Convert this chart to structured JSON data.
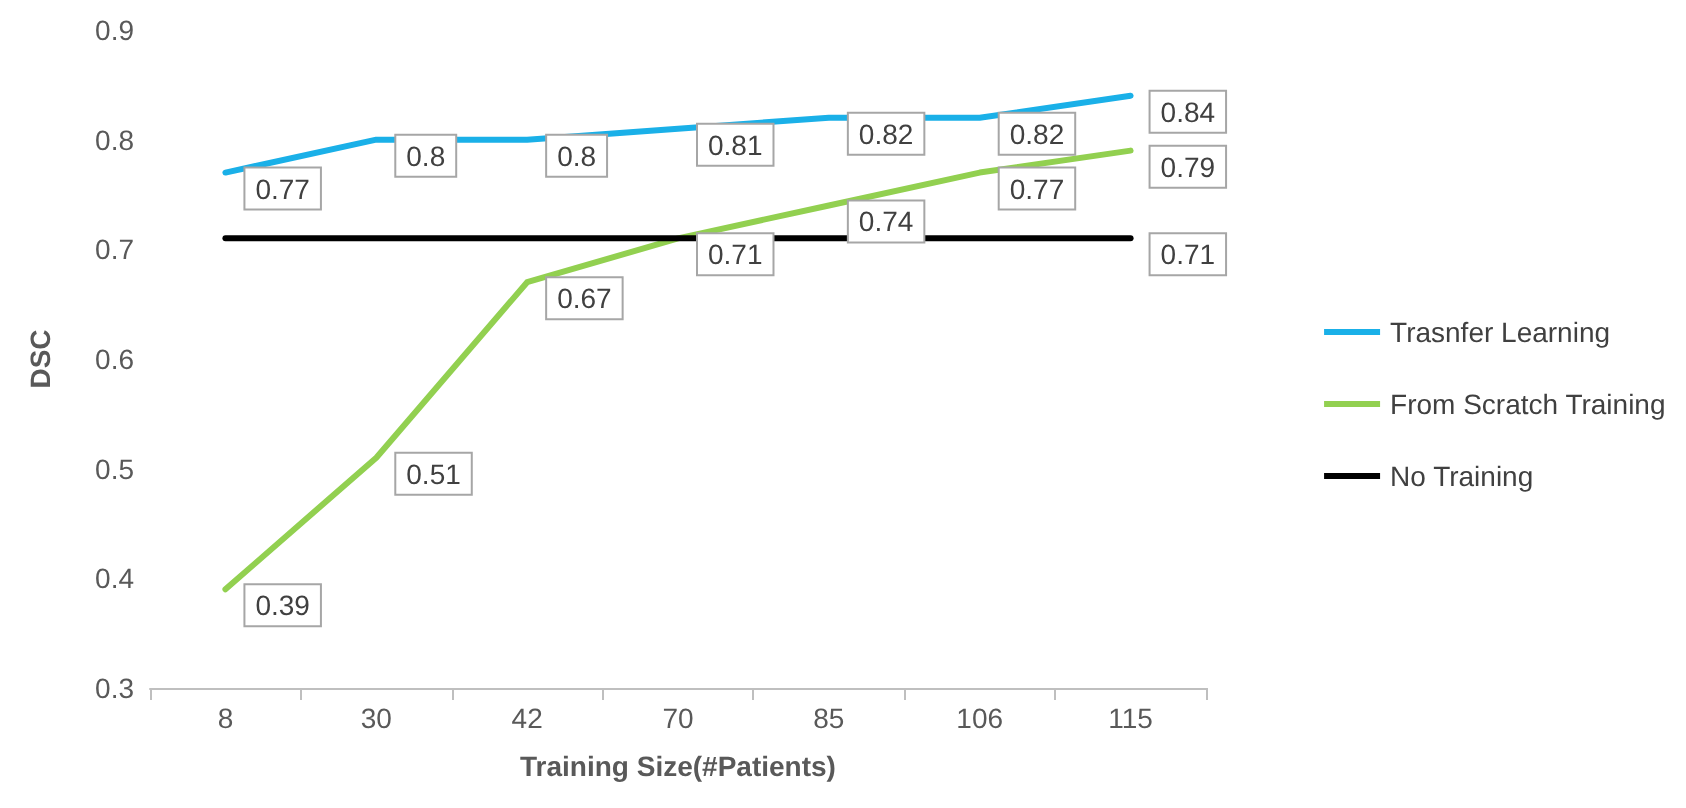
{
  "chart_data": {
    "type": "line",
    "xlabel": "Training Size(#Patients)",
    "ylabel": "DSC",
    "categories": [
      "8",
      "30",
      "42",
      "70",
      "85",
      "106",
      "115"
    ],
    "ylim": [
      0.3,
      0.9
    ],
    "yticks": [
      0.3,
      0.4,
      0.5,
      0.6,
      0.7,
      0.8,
      0.9
    ],
    "legend": "right",
    "marker": "none",
    "line_style": "solid",
    "series": [
      {
        "name": "Trasnfer Learning",
        "color": "#1ab0e8",
        "values": [
          0.77,
          0.8,
          0.8,
          0.81,
          0.82,
          0.82,
          0.84
        ],
        "value_labels": [
          "0.77",
          "0.8",
          "0.8",
          "0.81",
          "0.82",
          "0.82",
          "0.84"
        ]
      },
      {
        "name": "From Scratch Training",
        "color": "#92d050",
        "values": [
          0.39,
          0.51,
          0.67,
          0.71,
          0.74,
          0.77,
          0.79
        ],
        "value_labels": [
          "0.39",
          "0.51",
          "0.67",
          "0.71",
          "0.74",
          "0.77",
          "0.79"
        ]
      },
      {
        "name": "No Training",
        "color": "#000000",
        "values": [
          0.71,
          0.71,
          0.71,
          0.71,
          0.71,
          0.71,
          0.71
        ],
        "value_labels": [
          null,
          null,
          null,
          null,
          null,
          null,
          "0.71"
        ]
      }
    ]
  }
}
